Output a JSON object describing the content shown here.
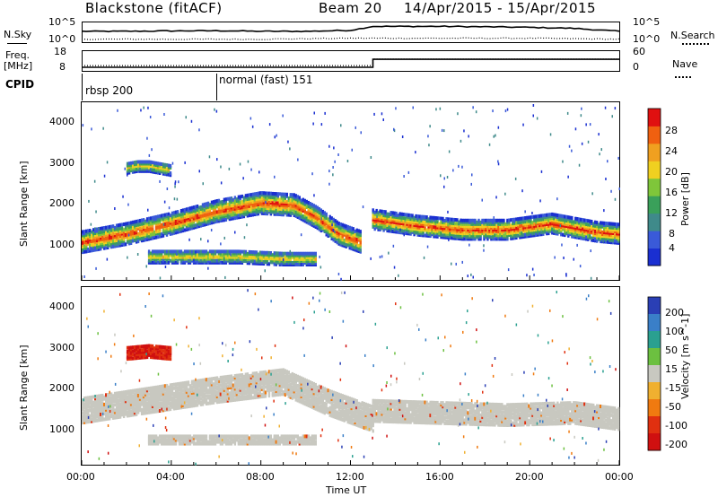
{
  "header": {
    "radar": "Blackstone (fitACF)",
    "beam": "Beam 20",
    "date_range": "14/Apr/2015 - 15/Apr/2015"
  },
  "left_labels": {
    "nsky": "N.Sky",
    "freq": "Freq.",
    "freq_unit": "[MHz]",
    "cpid": "CPID"
  },
  "right_labels": {
    "nsearch": "N.Search",
    "nave": "Nave"
  },
  "colors": {
    "power_scale": [
      "#1a2fd1",
      "#3a5ad8",
      "#3f8a8a",
      "#3aa05a",
      "#7fc63a",
      "#f0d020",
      "#f0a020",
      "#f06010",
      "#e01010"
    ],
    "velocity_scale": [
      "#2a3fb5",
      "#3a7fc8",
      "#2aa090",
      "#6cc040",
      "#c8c8c0",
      "#f0b030",
      "#f07a10",
      "#e03010",
      "#d01010"
    ],
    "velocity_grey": "#c8c8c0"
  },
  "chart_data": [
    {
      "type": "line",
      "name": "noise",
      "left_axis": {
        "label": "N.Sky",
        "ticks": [
          "10^5",
          "10^0"
        ]
      },
      "right_axis": {
        "label": "N.Search",
        "ticks": [
          "10^5",
          "10^0"
        ]
      },
      "x_range_hours": [
        0,
        24
      ],
      "series": [
        {
          "name": "N.Sky",
          "style": "solid",
          "x": [
            0,
            2,
            4,
            6,
            8,
            10,
            12,
            13,
            14,
            16,
            18,
            20,
            22,
            24
          ],
          "y_level": [
            0.55,
            0.55,
            0.57,
            0.58,
            0.55,
            0.55,
            0.6,
            0.8,
            0.8,
            0.8,
            0.78,
            0.75,
            0.7,
            0.55
          ]
        },
        {
          "name": "N.Search",
          "style": "dotted",
          "x": [
            0,
            4,
            8,
            12,
            16,
            20,
            24
          ],
          "y_level": [
            0.15,
            0.15,
            0.15,
            0.2,
            0.2,
            0.2,
            0.15
          ]
        }
      ]
    },
    {
      "type": "line",
      "name": "frequency-nave",
      "left_axis": {
        "label": "Freq. [MHz]",
        "ticks": [
          "18",
          "8"
        ]
      },
      "right_axis": {
        "label": "Nave",
        "ticks": [
          "60",
          "0"
        ]
      },
      "series": [
        {
          "name": "Freq.",
          "style": "solid",
          "x": [
            0,
            13,
            13,
            24
          ],
          "y": [
            10,
            10,
            14.5,
            14.5
          ]
        },
        {
          "name": "Nave",
          "style": "dotted",
          "x": [
            0,
            13,
            13,
            24
          ],
          "y": [
            8,
            8,
            18,
            18
          ]
        }
      ]
    },
    {
      "type": "table",
      "name": "cpid",
      "segments": [
        {
          "start_hour": 0,
          "label": "rbsp 200"
        },
        {
          "start_hour": 6,
          "label": "normal (fast) 151"
        }
      ]
    },
    {
      "type": "heatmap",
      "name": "power",
      "ylabel": "Slant Range [km]",
      "ylim": [
        180,
        4500
      ],
      "y_ticks": [
        1000,
        2000,
        3000,
        4000
      ],
      "x_range_hours": [
        0,
        24
      ],
      "colorbar": {
        "label": "Power [dB]",
        "ticks": [
          4,
          8,
          12,
          16,
          20,
          24,
          28
        ],
        "range": [
          0,
          30
        ]
      },
      "bands": [
        {
          "desc": "ionospheric band rising",
          "x": [
            0,
            2,
            4,
            6,
            8,
            9.5,
            10.5,
            11.5,
            12.5
          ],
          "center_km": [
            1100,
            1300,
            1550,
            1850,
            2050,
            2000,
            1700,
            1300,
            1100
          ],
          "width_km": 500,
          "peak_db": 28
        },
        {
          "desc": "lower band",
          "x": [
            3,
            5,
            7,
            9,
            10.5
          ],
          "center_km": [
            750,
            750,
            750,
            700,
            700
          ],
          "width_km": 300,
          "peak_db": 20
        },
        {
          "desc": "high patch",
          "x": [
            2,
            2.5,
            3,
            3.5,
            4
          ],
          "center_km": [
            2900,
            2950,
            2950,
            2900,
            2850
          ],
          "width_km": 250,
          "peak_db": 20
        },
        {
          "desc": "post-13h band",
          "x": [
            13,
            15,
            17,
            19,
            21,
            23,
            24
          ],
          "center_km": [
            1650,
            1500,
            1400,
            1400,
            1550,
            1350,
            1300
          ],
          "width_km": 450,
          "peak_db": 28
        }
      ]
    },
    {
      "type": "heatmap",
      "name": "velocity",
      "ylabel": "Slant Range [km]",
      "ylim": [
        180,
        4500
      ],
      "y_ticks": [
        1000,
        2000,
        3000,
        4000
      ],
      "x_range_hours": [
        0,
        24
      ],
      "x_ticks": [
        "00:00",
        "04:00",
        "08:00",
        "12:00",
        "16:00",
        "20:00",
        "00:00"
      ],
      "xlabel": "Time UT",
      "colorbar": {
        "label": "Velocity [m s^-1]",
        "ticks": [
          200,
          100,
          50,
          15,
          -15,
          -50,
          -100,
          -200
        ]
      },
      "bands": [
        {
          "desc": "ground scatter (grey)",
          "x": [
            0,
            3,
            6,
            9,
            11,
            13
          ],
          "center_km": [
            1500,
            1750,
            2000,
            2200,
            1700,
            1300
          ],
          "width_km": 600,
          "velocity": 0
        },
        {
          "desc": "lower ground scatter",
          "x": [
            3,
            6,
            9,
            10.5
          ],
          "center_km": [
            800,
            800,
            800,
            800
          ],
          "width_km": 220,
          "velocity": 0
        },
        {
          "desc": "high patch (red)",
          "x": [
            2,
            3,
            4
          ],
          "center_km": [
            2900,
            2950,
            2900
          ],
          "width_km": 300,
          "velocity": -200
        },
        {
          "desc": "afternoon band",
          "x": [
            13,
            16,
            19,
            22,
            24
          ],
          "center_km": [
            1500,
            1450,
            1400,
            1450,
            1300
          ],
          "width_km": 520,
          "velocity": 0
        }
      ]
    }
  ]
}
